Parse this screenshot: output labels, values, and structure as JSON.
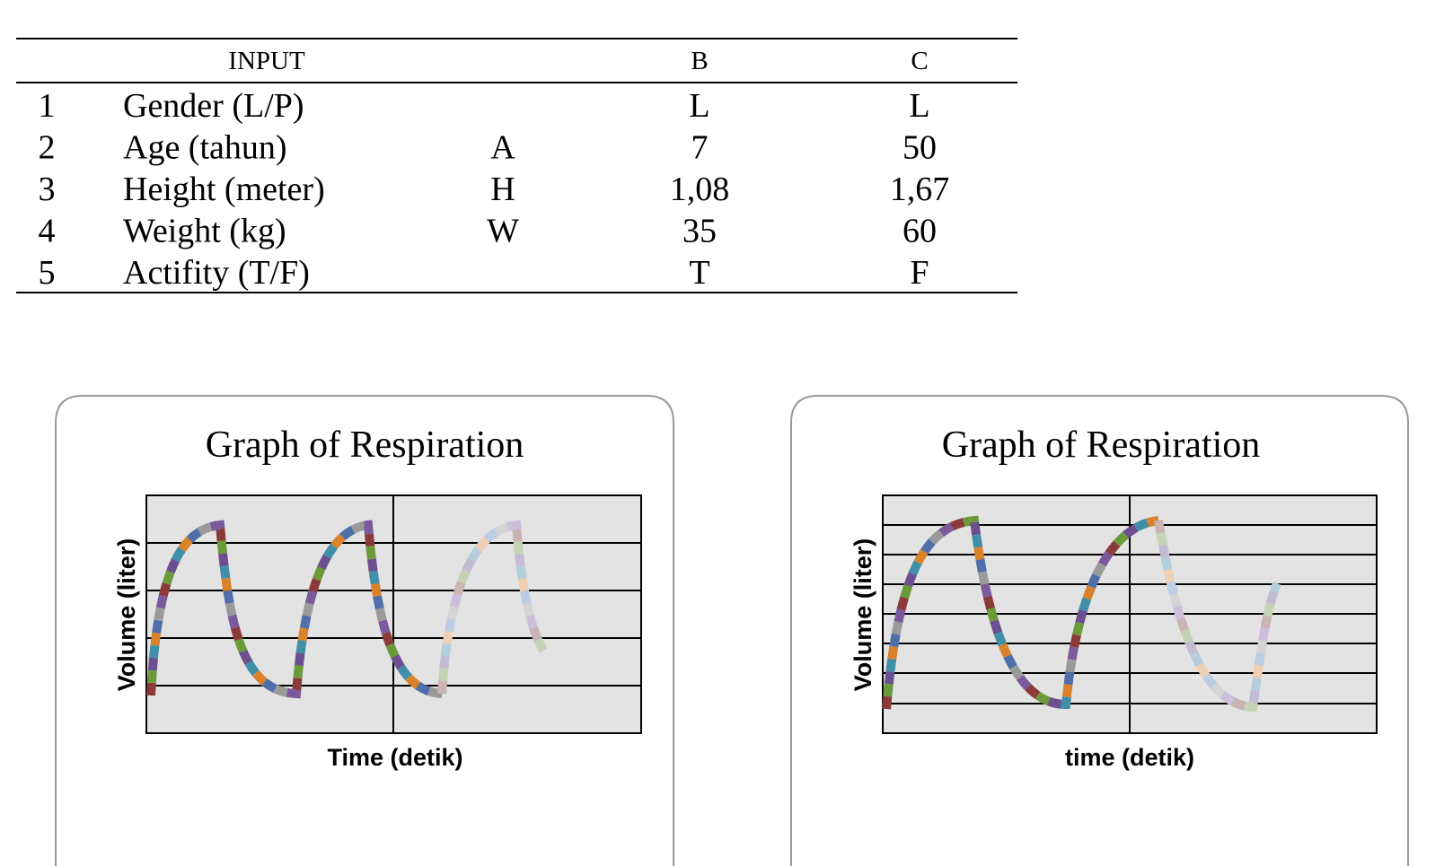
{
  "table": {
    "header": {
      "input": "INPUT",
      "b": "B",
      "c": "C"
    },
    "rows": [
      {
        "no": "1",
        "label": "Gender (L/P)",
        "b": "L",
        "c": "L"
      },
      {
        "no": "2",
        "label": "Age (tahun)",
        "symbol": "A",
        "b": "7",
        "c": "50"
      },
      {
        "no": "3",
        "label": "Height (meter)",
        "symbol": "H",
        "b": "1,08",
        "c": "1,67"
      },
      {
        "no": "4",
        "label": "Weight (kg)",
        "symbol": "W",
        "b": "35",
        "c": "60"
      },
      {
        "no": "5",
        "label": "Actifity (T/F)",
        "b": "T",
        "c": "F"
      }
    ]
  },
  "charts": [
    {
      "title": "Graph of  Respiration",
      "y_label": "Volume (liter)",
      "x_label": "Time (detik)"
    },
    {
      "title": "Graph of  Respiration",
      "y_label": "Volume (liter)",
      "x_label": "time (detik)"
    }
  ]
}
